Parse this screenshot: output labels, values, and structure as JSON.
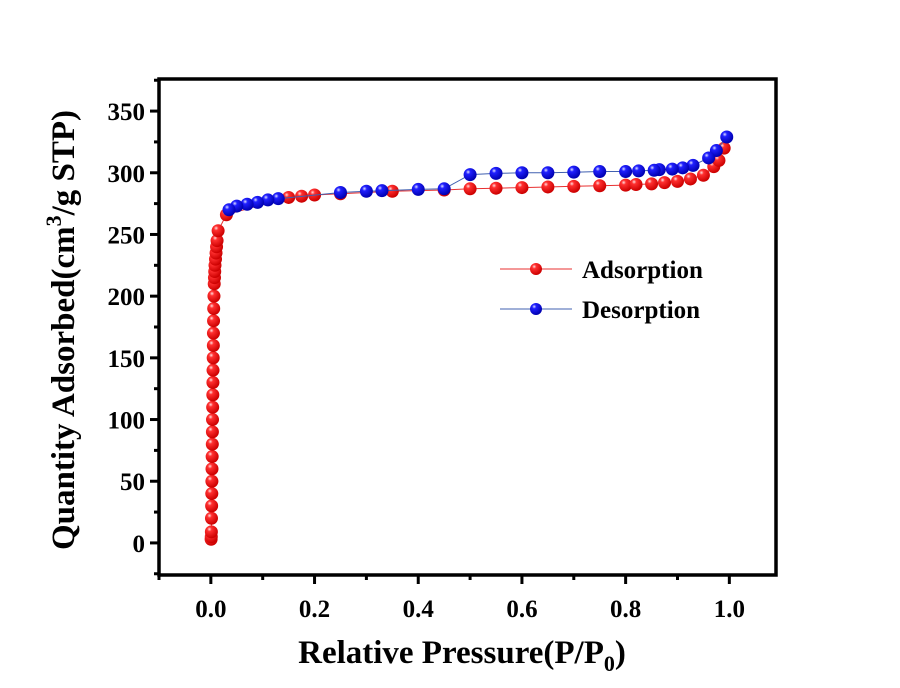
{
  "chart_data": {
    "type": "scatter",
    "title": "",
    "xlabel": "Relative Pressure(P/P",
    "xlabel_subscript": "0",
    "xlabel_suffix": ")",
    "ylabel": "Quantity Adsorbed(cm",
    "ylabel_superscript": "3",
    "ylabel_suffix": "/g STP)",
    "xlim": [
      -0.1,
      1.09
    ],
    "ylim": [
      -26,
      376
    ],
    "x_ticks": [
      0.0,
      0.2,
      0.4,
      0.6,
      0.8,
      1.0
    ],
    "x_tick_labels": [
      "0.0",
      "0.2",
      "0.4",
      "0.6",
      "0.8",
      "1.0"
    ],
    "x_minor_ticks": [
      -0.1,
      0.1,
      0.3,
      0.5,
      0.7,
      0.9
    ],
    "y_ticks": [
      0,
      50,
      100,
      150,
      200,
      250,
      300,
      350
    ],
    "y_tick_labels": [
      "0",
      "50",
      "100",
      "150",
      "200",
      "250",
      "300",
      "350"
    ],
    "y_minor_ticks": [
      -25,
      25,
      75,
      125,
      175,
      225,
      275,
      325,
      375
    ],
    "grid": false,
    "legend_position": "center-right",
    "series": [
      {
        "name": "Adsorption",
        "color": "#ff0000",
        "line_color": "#e83030",
        "x": [
          0.0005,
          0.0008,
          0.001,
          0.0012,
          0.0015,
          0.0018,
          0.002,
          0.0022,
          0.0025,
          0.0028,
          0.003,
          0.0032,
          0.0035,
          0.0038,
          0.004,
          0.0042,
          0.0045,
          0.0048,
          0.005,
          0.0052,
          0.0055,
          0.006,
          0.0065,
          0.007,
          0.0075,
          0.008,
          0.009,
          0.01,
          0.011,
          0.012,
          0.014,
          0.03,
          0.15,
          0.175,
          0.2,
          0.25,
          0.35,
          0.45,
          0.5,
          0.55,
          0.6,
          0.65,
          0.7,
          0.75,
          0.8,
          0.82,
          0.85,
          0.875,
          0.9,
          0.925,
          0.95,
          0.97,
          0.98,
          0.99
        ],
        "y": [
          3,
          5,
          9,
          20,
          30,
          40,
          50,
          60,
          70,
          80,
          90,
          100,
          110,
          120,
          130,
          140,
          150,
          160,
          170,
          180,
          190,
          200,
          210,
          215,
          220,
          225,
          230,
          235,
          240,
          245,
          253,
          266,
          280,
          281,
          282,
          283,
          285,
          286,
          287,
          287.5,
          288,
          288.5,
          289,
          289.5,
          290,
          290.5,
          291,
          292,
          293,
          295,
          298,
          305,
          310,
          320
        ]
      },
      {
        "name": "Desorption",
        "color": "#0000ff",
        "line_color": "#4060b0",
        "x": [
          0.995,
          0.975,
          0.96,
          0.93,
          0.91,
          0.89,
          0.865,
          0.855,
          0.825,
          0.8,
          0.75,
          0.7,
          0.65,
          0.6,
          0.55,
          0.5,
          0.45,
          0.4,
          0.33,
          0.3,
          0.25,
          0.13,
          0.11,
          0.09,
          0.07,
          0.05,
          0.035
        ],
        "y": [
          329,
          318,
          312,
          306,
          304,
          303,
          302.5,
          302,
          301.5,
          301,
          301,
          300.5,
          300,
          300,
          299.5,
          298.5,
          287,
          286.5,
          285.5,
          285,
          284,
          279,
          278,
          276,
          274.5,
          273,
          270
        ]
      }
    ]
  }
}
